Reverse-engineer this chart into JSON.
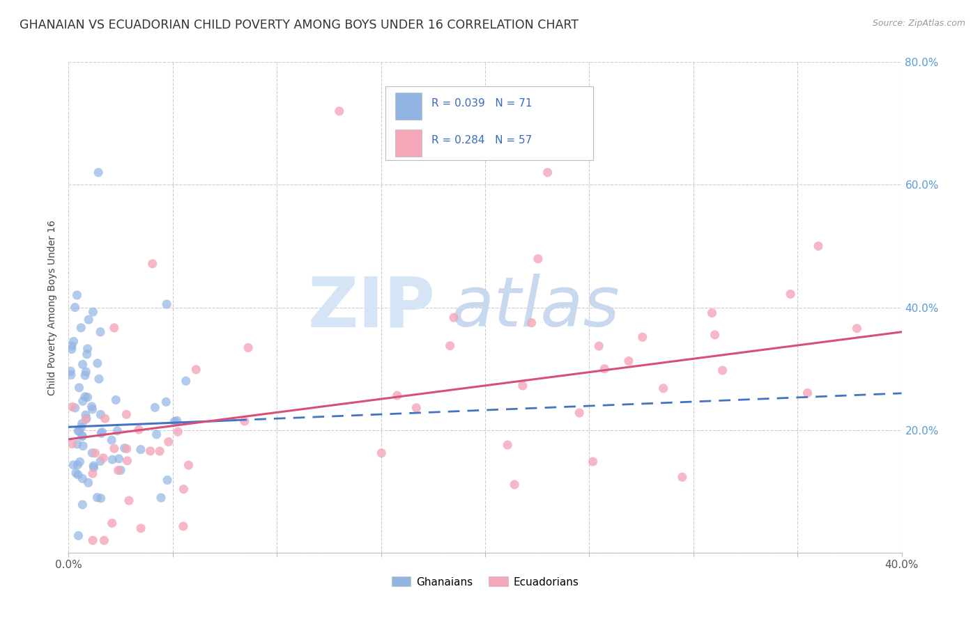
{
  "title": "GHANAIAN VS ECUADORIAN CHILD POVERTY AMONG BOYS UNDER 16 CORRELATION CHART",
  "source": "Source: ZipAtlas.com",
  "ylabel": "Child Poverty Among Boys Under 16",
  "xlim": [
    0.0,
    0.4
  ],
  "ylim": [
    0.0,
    0.8
  ],
  "ghanaian_color": "#92b4e3",
  "ecuadorian_color": "#f4a7b9",
  "ghanaian_line_color": "#4472c4",
  "ecuadorian_line_color": "#d94f7a",
  "background_color": "#ffffff",
  "grid_color": "#cccccc",
  "right_tick_color": "#5b9bd5",
  "title_color": "#333333",
  "source_color": "#999999",
  "watermark_zip_color": "#d5e5f5",
  "watermark_atlas_color": "#c8d8ee",
  "legend_border_color": "#bbbbbb",
  "legend_text_color": "#3a6abf",
  "legend_r1": "R = 0.039",
  "legend_n1": "N = 71",
  "legend_r2": "R = 0.284",
  "legend_n2": "N = 57",
  "gh_R": 0.039,
  "gh_N": 71,
  "ec_R": 0.284,
  "ec_N": 57
}
